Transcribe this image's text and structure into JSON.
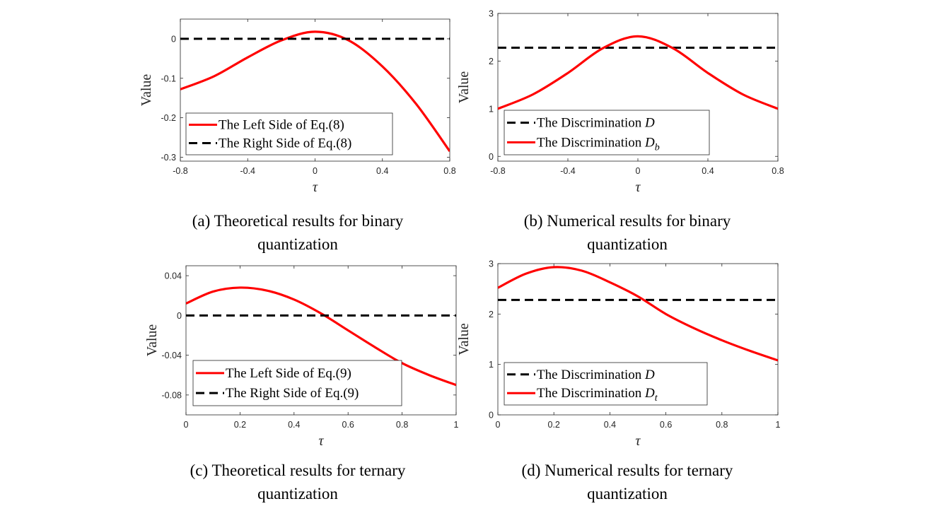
{
  "chart_data": [
    {
      "id": "a",
      "type": "line",
      "caption_lines": [
        "(a) Theoretical results for binary",
        "quantization"
      ],
      "xlabel": "τ",
      "ylabel": "Value",
      "xlim": [
        -0.8,
        0.8
      ],
      "ylim": [
        -0.31,
        0.05
      ],
      "xticks": [
        -0.8,
        -0.4,
        0,
        0.4,
        0.8
      ],
      "xticklabels": [
        "-0.8",
        "-0.4",
        "0",
        "0.4",
        "0.8"
      ],
      "yticks": [
        0,
        -0.1,
        -0.2,
        -0.3
      ],
      "yticklabels": [
        "0",
        "-0.1",
        "-0.2",
        "-0.3"
      ],
      "legend_placement": "bottom-left",
      "series": [
        {
          "name": "The Left Side of Eq.(8)",
          "style": "solid",
          "color": "#ff0000",
          "x": [
            -0.8,
            -0.6,
            -0.4,
            -0.2,
            0,
            0.2,
            0.4,
            0.6,
            0.8
          ],
          "y": [
            -0.128,
            -0.095,
            -0.047,
            -0.004,
            0.018,
            -0.004,
            -0.07,
            -0.165,
            -0.285
          ]
        },
        {
          "name": "The Right Side of Eq.(8)",
          "style": "dashed",
          "color": "#000000",
          "x": [
            -0.8,
            0.8
          ],
          "y": [
            0,
            0
          ]
        }
      ]
    },
    {
      "id": "b",
      "type": "line",
      "caption_lines": [
        "(b) Numerical results for binary",
        "quantization"
      ],
      "xlabel": "τ",
      "ylabel": "Value",
      "xlim": [
        -0.8,
        0.8
      ],
      "ylim": [
        -0.1,
        3
      ],
      "xticks": [
        -0.8,
        -0.4,
        0,
        0.4,
        0.8
      ],
      "xticklabels": [
        "-0.8",
        "-0.4",
        "0",
        "0.4",
        "0.8"
      ],
      "yticks": [
        0,
        1,
        2,
        3
      ],
      "yticklabels": [
        "0",
        "1",
        "2",
        "3"
      ],
      "legend_placement": "bottom-left",
      "series": [
        {
          "name": "The Discrimination D",
          "style": "dashed",
          "color": "#000000",
          "x": [
            -0.8,
            0.8
          ],
          "y": [
            2.28,
            2.28
          ]
        },
        {
          "name": "The Discrimination Db",
          "style": "solid",
          "color": "#ff0000",
          "x": [
            -0.8,
            -0.6,
            -0.4,
            -0.2,
            0,
            0.2,
            0.4,
            0.6,
            0.8
          ],
          "y": [
            1.0,
            1.3,
            1.75,
            2.27,
            2.52,
            2.27,
            1.75,
            1.3,
            1.0
          ]
        }
      ]
    },
    {
      "id": "c",
      "type": "line",
      "caption_lines": [
        "(c) Theoretical results for ternary",
        "quantization"
      ],
      "xlabel": "τ",
      "ylabel": "Value",
      "xlim": [
        0,
        1
      ],
      "ylim": [
        -0.1,
        0.05
      ],
      "xticks": [
        0,
        0.2,
        0.4,
        0.6,
        0.8,
        1
      ],
      "xticklabels": [
        "0",
        "0.2",
        "0.4",
        "0.6",
        "0.8",
        "1"
      ],
      "yticks": [
        0.04,
        0,
        -0.04,
        -0.08
      ],
      "yticklabels": [
        "0.04",
        "0",
        "-0.04",
        "-0.08"
      ],
      "legend_placement": "bottom-left",
      "series": [
        {
          "name": "The Left Side of Eq.(9)",
          "style": "solid",
          "color": "#ff0000",
          "x": [
            0,
            0.1,
            0.2,
            0.3,
            0.4,
            0.5,
            0.6,
            0.7,
            0.8,
            0.9,
            1.0
          ],
          "y": [
            0.012,
            0.024,
            0.028,
            0.025,
            0.016,
            0.002,
            -0.015,
            -0.032,
            -0.048,
            -0.06,
            -0.07
          ]
        },
        {
          "name": "The Right Side of Eq.(9)",
          "style": "dashed",
          "color": "#000000",
          "x": [
            0,
            1
          ],
          "y": [
            0,
            0
          ]
        }
      ]
    },
    {
      "id": "d",
      "type": "line",
      "caption_lines": [
        "(d) Numerical results for ternary",
        "quantization"
      ],
      "xlabel": "τ",
      "ylabel": "Value",
      "xlim": [
        0,
        1
      ],
      "ylim": [
        0,
        3
      ],
      "xticks": [
        0,
        0.2,
        0.4,
        0.6,
        0.8,
        1
      ],
      "xticklabels": [
        "0",
        "0.2",
        "0.4",
        "0.6",
        "0.8",
        "1"
      ],
      "yticks": [
        0,
        1,
        2,
        3
      ],
      "yticklabels": [
        "0",
        "1",
        "2",
        "3"
      ],
      "legend_placement": "bottom-left",
      "series": [
        {
          "name": "The Discrimination D",
          "style": "dashed",
          "color": "#000000",
          "x": [
            0,
            1
          ],
          "y": [
            2.28,
            2.28
          ]
        },
        {
          "name": "The Discrimination Dt",
          "style": "solid",
          "color": "#ff0000",
          "x": [
            0,
            0.1,
            0.2,
            0.3,
            0.4,
            0.5,
            0.6,
            0.7,
            0.8,
            0.9,
            1.0
          ],
          "y": [
            2.52,
            2.8,
            2.93,
            2.86,
            2.63,
            2.35,
            2.0,
            1.72,
            1.48,
            1.27,
            1.08
          ]
        }
      ]
    }
  ]
}
